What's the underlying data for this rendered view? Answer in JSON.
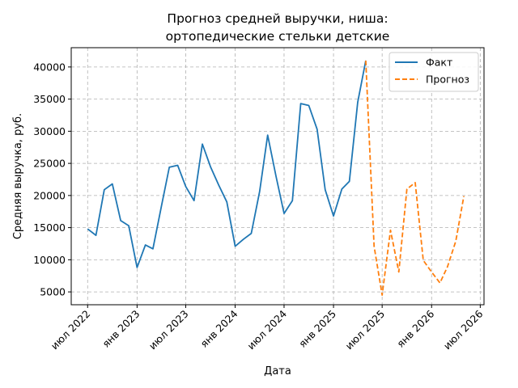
{
  "chart_data": {
    "type": "line",
    "title": [
      "Прогноз средней выручки, ниша:",
      "ортопедические стельки детские"
    ],
    "xlabel": "Дата",
    "ylabel": "Средняя выручка, руб.",
    "grid": true,
    "legend_position": "top-right",
    "xlim": [
      "2022-05-01",
      "2026-07-15"
    ],
    "ylim": [
      3000,
      43000
    ],
    "x_ticks": [
      {
        "date": "2022-07-01",
        "label": "июл 2022"
      },
      {
        "date": "2023-01-01",
        "label": "янв 2023"
      },
      {
        "date": "2023-07-01",
        "label": "июл 2023"
      },
      {
        "date": "2024-01-01",
        "label": "янв 2024"
      },
      {
        "date": "2024-07-01",
        "label": "июл 2024"
      },
      {
        "date": "2025-01-01",
        "label": "янв 2025"
      },
      {
        "date": "2025-07-01",
        "label": "июл 2025"
      },
      {
        "date": "2026-01-01",
        "label": "янв 2026"
      },
      {
        "date": "2026-07-01",
        "label": "июл 2026"
      }
    ],
    "y_ticks": [
      5000,
      10000,
      15000,
      20000,
      25000,
      30000,
      35000,
      40000
    ],
    "series": [
      {
        "name": "Факт",
        "color": "#1f77b4",
        "style": "solid",
        "points": [
          [
            "2022-07-01",
            14800
          ],
          [
            "2022-08-01",
            13800
          ],
          [
            "2022-09-01",
            20900
          ],
          [
            "2022-10-01",
            21800
          ],
          [
            "2022-11-01",
            16100
          ],
          [
            "2022-12-01",
            15300
          ],
          [
            "2023-01-01",
            8800
          ],
          [
            "2023-02-01",
            12300
          ],
          [
            "2023-03-01",
            11700
          ],
          [
            "2023-04-01",
            18200
          ],
          [
            "2023-05-01",
            24400
          ],
          [
            "2023-06-01",
            24700
          ],
          [
            "2023-07-01",
            21400
          ],
          [
            "2023-08-01",
            19200
          ],
          [
            "2023-09-01",
            28000
          ],
          [
            "2023-10-01",
            24500
          ],
          [
            "2023-11-01",
            21600
          ],
          [
            "2023-12-01",
            19000
          ],
          [
            "2024-01-01",
            12100
          ],
          [
            "2024-02-01",
            13200
          ],
          [
            "2024-03-01",
            14100
          ],
          [
            "2024-04-01",
            20600
          ],
          [
            "2024-05-01",
            29400
          ],
          [
            "2024-06-01",
            23000
          ],
          [
            "2024-07-01",
            17200
          ],
          [
            "2024-08-01",
            19200
          ],
          [
            "2024-09-01",
            34300
          ],
          [
            "2024-10-01",
            34000
          ],
          [
            "2024-11-01",
            30300
          ],
          [
            "2024-12-01",
            20900
          ],
          [
            "2025-01-01",
            16800
          ],
          [
            "2025-02-01",
            21000
          ],
          [
            "2025-03-01",
            22200
          ],
          [
            "2025-04-01",
            34500
          ],
          [
            "2025-05-01",
            41000
          ]
        ]
      },
      {
        "name": "Прогноз",
        "color": "#ff7f0e",
        "style": "dashed",
        "points": [
          [
            "2025-05-01",
            41000
          ],
          [
            "2025-06-01",
            12100
          ],
          [
            "2025-07-01",
            4500
          ],
          [
            "2025-08-01",
            14600
          ],
          [
            "2025-09-01",
            8100
          ],
          [
            "2025-10-01",
            21000
          ],
          [
            "2025-11-01",
            22000
          ],
          [
            "2025-12-01",
            9900
          ],
          [
            "2026-01-01",
            8100
          ],
          [
            "2026-02-01",
            6400
          ],
          [
            "2026-03-01",
            8900
          ],
          [
            "2026-04-01",
            12900
          ],
          [
            "2026-05-01",
            19900
          ]
        ]
      }
    ]
  }
}
